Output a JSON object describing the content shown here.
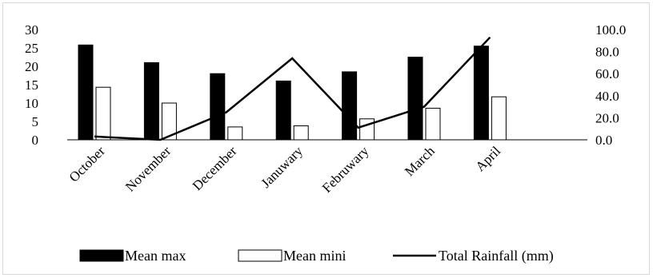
{
  "chart_data": {
    "type": "bar",
    "categories": [
      "October",
      "November",
      "December",
      "Januwary",
      "Februwary",
      "March",
      "April"
    ],
    "series": [
      {
        "name": "Mean max",
        "type": "bar",
        "axis": "left",
        "color": "#000000",
        "values": [
          25.8,
          21.0,
          18.0,
          16.0,
          18.5,
          22.5,
          25.5
        ]
      },
      {
        "name": "Mean mini",
        "type": "bar",
        "axis": "left",
        "color": "#ffffff",
        "values": [
          14.3,
          10.0,
          3.5,
          3.8,
          5.7,
          8.6,
          11.7
        ]
      },
      {
        "name": "Total Rainfall (mm)",
        "type": "line",
        "axis": "right",
        "color": "#000000",
        "values": [
          3.0,
          0.0,
          25.0,
          73.9,
          11.0,
          30.0,
          93.0
        ]
      }
    ],
    "y_left": {
      "min": 0,
      "max": 30,
      "ticks": [
        "0",
        "5",
        "10",
        "15",
        "20",
        "25",
        "30"
      ]
    },
    "y_right": {
      "min": 0,
      "max": 100,
      "ticks": [
        "0.0",
        "20.0",
        "40.0",
        "60.0",
        "80.0",
        "100.0"
      ]
    },
    "grid": false,
    "legend_position": "bottom"
  }
}
